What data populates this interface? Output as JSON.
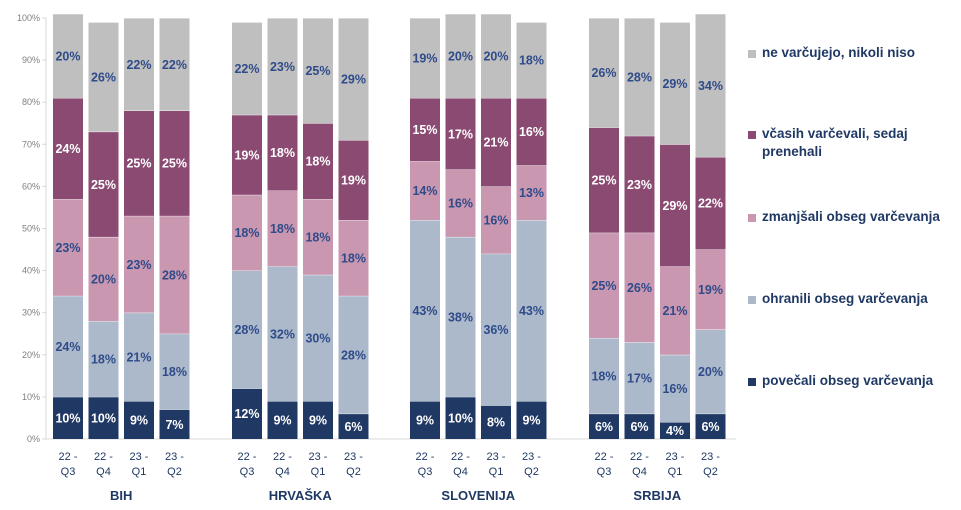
{
  "chart_data": {
    "type": "bar",
    "stacked": true,
    "percent": true,
    "ylim": [
      0,
      100
    ],
    "y_ticks": [
      "0%",
      "10%",
      "20%",
      "30%",
      "40%",
      "50%",
      "60%",
      "70%",
      "80%",
      "90%",
      "100%"
    ],
    "grid": false,
    "legend_position": "right",
    "groups": [
      {
        "name": "BIH",
        "periods": [
          "22 - Q3",
          "22 - Q4",
          "23 - Q1",
          "23 - Q2"
        ]
      },
      {
        "name": "HRVAŠKA",
        "periods": [
          "22 - Q3",
          "22 - Q4",
          "23 - Q1",
          "23 - Q2"
        ]
      },
      {
        "name": "SLOVENIJA",
        "periods": [
          "22 - Q3",
          "22 - Q4",
          "23 - Q1",
          "23 - Q2"
        ]
      },
      {
        "name": "SRBIJA",
        "periods": [
          "22 - Q3",
          "22 - Q4",
          "23 - Q1",
          "23 - Q2"
        ]
      }
    ],
    "series": [
      {
        "name": "povečali obseg varčevanja",
        "color": "#203864",
        "values": [
          [
            10,
            10,
            9,
            7
          ],
          [
            12,
            9,
            9,
            6
          ],
          [
            9,
            10,
            8,
            9
          ],
          [
            6,
            6,
            4,
            6
          ]
        ],
        "labels": [
          [
            "10%",
            "10%",
            "9%",
            "7%"
          ],
          [
            "12%",
            "9%",
            "9%",
            "6%"
          ],
          [
            "9%",
            "10%",
            "8%",
            "9%"
          ],
          [
            "6%",
            "6%",
            "4%",
            "6%"
          ]
        ]
      },
      {
        "name": "ohranili obseg varčevanja",
        "color": "#acb9ca",
        "values": [
          [
            24,
            18,
            21,
            18
          ],
          [
            28,
            32,
            30,
            28
          ],
          [
            43,
            38,
            36,
            43
          ],
          [
            18,
            17,
            16,
            20
          ]
        ],
        "labels": [
          [
            "24%",
            "18%",
            "21%",
            "18%"
          ],
          [
            "28%",
            "32%",
            "30%",
            "28%"
          ],
          [
            "43%",
            "38%",
            "36%",
            "43%"
          ],
          [
            "18%",
            "17%",
            "16%",
            "20%"
          ]
        ]
      },
      {
        "name": "zmanjšali obseg varčevanja",
        "color": "#c997b0",
        "values": [
          [
            23,
            20,
            23,
            28
          ],
          [
            18,
            18,
            18,
            18
          ],
          [
            14,
            16,
            16,
            13
          ],
          [
            25,
            26,
            21,
            19
          ]
        ],
        "labels": [
          [
            "23%",
            "20%",
            "23%",
            "28%"
          ],
          [
            "18%",
            "18%",
            "18%",
            "18%"
          ],
          [
            "14%",
            "16%",
            "16%",
            "13%"
          ],
          [
            "25%",
            "26%",
            "21%",
            "19%"
          ]
        ]
      },
      {
        "name": "včasih varčevali, sedaj prenehali",
        "color": "#8b4a72",
        "values": [
          [
            24,
            25,
            25,
            25
          ],
          [
            19,
            18,
            18,
            19
          ],
          [
            15,
            17,
            21,
            16
          ],
          [
            25,
            23,
            29,
            22
          ]
        ],
        "labels": [
          [
            "24%",
            "25%",
            "25%",
            "25%"
          ],
          [
            "19%",
            "18%",
            "18%",
            "19%"
          ],
          [
            "15%",
            "17%",
            "21%",
            "16%"
          ],
          [
            "25%",
            "23%",
            "29%",
            "22%"
          ]
        ]
      },
      {
        "name": "ne varčujejo, nikoli niso",
        "color": "#bfbfbf",
        "values": [
          [
            20,
            26,
            22,
            22
          ],
          [
            22,
            23,
            25,
            29
          ],
          [
            19,
            20,
            20,
            18
          ],
          [
            26,
            28,
            29,
            34
          ]
        ],
        "labels": [
          [
            "20%",
            "26%",
            "22%",
            "22%"
          ],
          [
            "22%",
            "23%",
            "25%",
            "29%"
          ],
          [
            "19%",
            "20%",
            "20%",
            "18%"
          ],
          [
            "26%",
            "28%",
            "29%",
            "34%"
          ]
        ]
      }
    ],
    "legend_order": [
      4,
      3,
      2,
      1,
      0
    ]
  }
}
